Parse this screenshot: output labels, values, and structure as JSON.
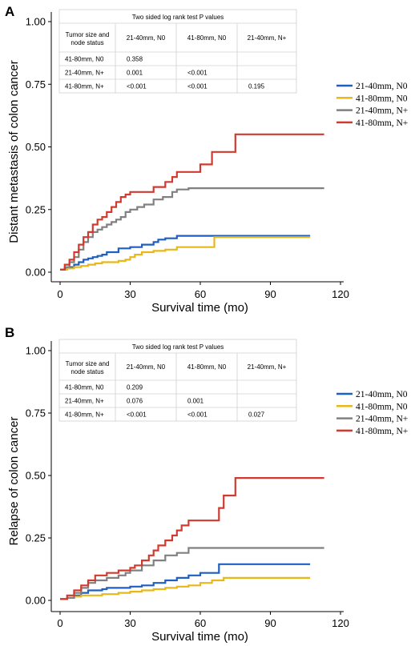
{
  "chart_data": [
    {
      "type": "line",
      "step": true,
      "panel_label": "A",
      "xlabel": "Survival time (mo)",
      "ylabel": "Distant metastasis of colon cancer",
      "xlim": [
        0,
        120
      ],
      "ylim": [
        0,
        1
      ],
      "xticks": [
        "0",
        "30",
        "60",
        "90",
        "120"
      ],
      "yticks": [
        "0.00",
        "0.25",
        "0.50",
        "0.75",
        "1.00"
      ],
      "grid": false,
      "legend_position": "right",
      "series": [
        {
          "name": "21-40mm, N0",
          "color": "#1f5fbf",
          "x": [
            0,
            2,
            4,
            6,
            8,
            10,
            12,
            14,
            16,
            18,
            20,
            25,
            30,
            35,
            40,
            42,
            45,
            50,
            55,
            65,
            80,
            100,
            107
          ],
          "y": [
            0.01,
            0.015,
            0.02,
            0.03,
            0.04,
            0.05,
            0.055,
            0.06,
            0.065,
            0.07,
            0.08,
            0.095,
            0.1,
            0.11,
            0.12,
            0.13,
            0.135,
            0.145,
            0.145,
            0.145,
            0.145,
            0.145,
            0.145
          ]
        },
        {
          "name": "41-80mm, N0",
          "color": "#e8b81a",
          "x": [
            0,
            3,
            6,
            9,
            12,
            15,
            18,
            20,
            25,
            28,
            30,
            32,
            35,
            40,
            45,
            50,
            55,
            60,
            65,
            66,
            90,
            107
          ],
          "y": [
            0.01,
            0.015,
            0.02,
            0.025,
            0.03,
            0.035,
            0.04,
            0.04,
            0.045,
            0.05,
            0.06,
            0.07,
            0.08,
            0.085,
            0.09,
            0.1,
            0.1,
            0.1,
            0.1,
            0.14,
            0.14,
            0.14
          ]
        },
        {
          "name": "21-40mm, N+",
          "color": "#808080",
          "x": [
            0,
            2,
            4,
            6,
            8,
            10,
            12,
            14,
            16,
            18,
            20,
            22,
            24,
            26,
            28,
            30,
            33,
            36,
            40,
            44,
            48,
            50,
            55,
            60,
            75,
            113
          ],
          "y": [
            0.01,
            0.02,
            0.04,
            0.06,
            0.09,
            0.12,
            0.14,
            0.16,
            0.17,
            0.18,
            0.19,
            0.2,
            0.21,
            0.22,
            0.24,
            0.25,
            0.26,
            0.27,
            0.29,
            0.3,
            0.32,
            0.33,
            0.335,
            0.335,
            0.335,
            0.335
          ]
        },
        {
          "name": "41-80mm, N+",
          "color": "#d03a2f",
          "x": [
            0,
            2,
            4,
            6,
            8,
            10,
            12,
            14,
            16,
            18,
            20,
            22,
            24,
            26,
            28,
            30,
            35,
            40,
            45,
            48,
            50,
            55,
            60,
            65,
            70,
            75,
            113
          ],
          "y": [
            0.01,
            0.03,
            0.05,
            0.08,
            0.11,
            0.14,
            0.16,
            0.19,
            0.21,
            0.22,
            0.24,
            0.26,
            0.28,
            0.3,
            0.31,
            0.32,
            0.32,
            0.34,
            0.36,
            0.38,
            0.4,
            0.4,
            0.43,
            0.48,
            0.48,
            0.55,
            0.55
          ]
        }
      ],
      "pvalue_table": {
        "title": "Two sided log rank test P values",
        "header": [
          "Tumor size and node status",
          "21-40mm, N0",
          "41-80mm, N0",
          "21-40mm, N+"
        ],
        "rows": [
          [
            "41-80mm, N0",
            "0.358",
            "",
            ""
          ],
          [
            "21-40mm, N+",
            "0.001",
            "<0.001",
            ""
          ],
          [
            "41-80mm, N+",
            "<0.001",
            "<0.001",
            "0.195"
          ]
        ]
      }
    },
    {
      "type": "line",
      "step": true,
      "panel_label": "B",
      "xlabel": "Survival time (mo)",
      "ylabel": "Relapse of colon cancer",
      "xlim": [
        0,
        120
      ],
      "ylim": [
        0,
        1
      ],
      "xticks": [
        "0",
        "30",
        "60",
        "90",
        "120"
      ],
      "yticks": [
        "0.00",
        "0.25",
        "0.50",
        "0.75",
        "1.00"
      ],
      "grid": false,
      "legend_position": "right",
      "series": [
        {
          "name": "21-40mm, N0",
          "color": "#1f5fbf",
          "x": [
            0,
            3,
            6,
            9,
            12,
            15,
            18,
            20,
            25,
            30,
            35,
            40,
            45,
            50,
            55,
            60,
            68,
            75,
            107
          ],
          "y": [
            0.005,
            0.01,
            0.02,
            0.03,
            0.04,
            0.04,
            0.045,
            0.05,
            0.05,
            0.055,
            0.06,
            0.07,
            0.08,
            0.09,
            0.1,
            0.11,
            0.145,
            0.145,
            0.145
          ]
        },
        {
          "name": "41-80mm, N0",
          "color": "#e8b81a",
          "x": [
            0,
            3,
            6,
            9,
            12,
            18,
            25,
            30,
            35,
            40,
            45,
            50,
            55,
            60,
            65,
            70,
            107
          ],
          "y": [
            0.005,
            0.01,
            0.015,
            0.02,
            0.02,
            0.025,
            0.03,
            0.035,
            0.04,
            0.045,
            0.05,
            0.055,
            0.06,
            0.07,
            0.08,
            0.09,
            0.09
          ]
        },
        {
          "name": "21-40mm, N+",
          "color": "#808080",
          "x": [
            0,
            3,
            6,
            9,
            12,
            15,
            20,
            25,
            28,
            30,
            35,
            40,
            45,
            50,
            55,
            60,
            113
          ],
          "y": [
            0.005,
            0.01,
            0.03,
            0.05,
            0.07,
            0.08,
            0.09,
            0.1,
            0.11,
            0.12,
            0.14,
            0.16,
            0.18,
            0.19,
            0.21,
            0.21,
            0.21
          ]
        },
        {
          "name": "41-80mm, N+",
          "color": "#d03a2f",
          "x": [
            0,
            3,
            6,
            9,
            12,
            15,
            20,
            25,
            30,
            32,
            35,
            38,
            40,
            42,
            45,
            48,
            50,
            52,
            55,
            60,
            65,
            68,
            70,
            75,
            113
          ],
          "y": [
            0.005,
            0.02,
            0.04,
            0.06,
            0.08,
            0.1,
            0.11,
            0.12,
            0.13,
            0.14,
            0.16,
            0.18,
            0.2,
            0.22,
            0.24,
            0.26,
            0.28,
            0.3,
            0.32,
            0.32,
            0.32,
            0.37,
            0.42,
            0.49,
            0.49
          ]
        }
      ],
      "pvalue_table": {
        "title": "Two sided log rank test P values",
        "header": [
          "Tumor size and node status",
          "21-40mm, N0",
          "41-80mm, N0",
          "21-40mm, N+"
        ],
        "rows": [
          [
            "41-80mm, N0",
            "0.209",
            "",
            ""
          ],
          [
            "21-40mm, N+",
            "0.076",
            "0.001",
            ""
          ],
          [
            "41-80mm, N+",
            "<0.001",
            "<0.001",
            "0.027"
          ]
        ]
      }
    }
  ]
}
